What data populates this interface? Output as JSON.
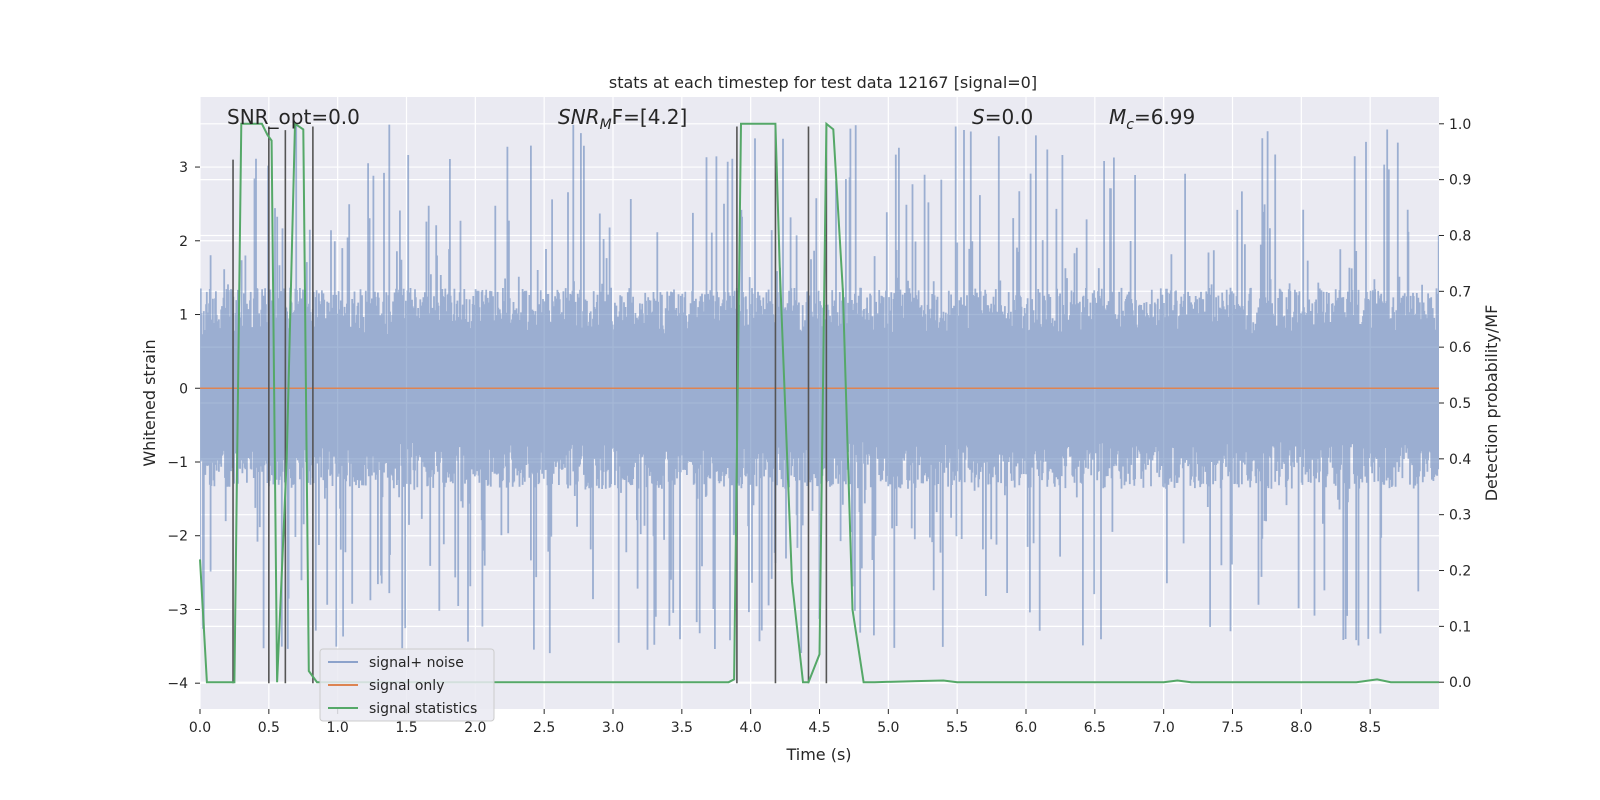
{
  "chart_data": {
    "type": "line",
    "title": "stats at each timestep for test data 12167 [signal=0]",
    "xlabel": "Time (s)",
    "ylabel": "Whitened strain",
    "y2label": "Detection probability/MF",
    "xlim": [
      0.0,
      9.0
    ],
    "ylim": [
      -4.35,
      3.95
    ],
    "y2lim": [
      -0.048,
      1.048
    ],
    "xticks": [
      "0.0",
      "0.5",
      "1.0",
      "1.5",
      "2.0",
      "2.5",
      "3.0",
      "3.5",
      "4.0",
      "4.5",
      "5.0",
      "5.5",
      "6.0",
      "6.5",
      "7.0",
      "7.5",
      "8.0",
      "8.5"
    ],
    "yticks": [
      "3",
      "2",
      "1",
      "0",
      "−1",
      "−2",
      "−3",
      "−4"
    ],
    "y2ticks": [
      "1.0",
      "0.9",
      "0.8",
      "0.7",
      "0.6",
      "0.5",
      "0.4",
      "0.3",
      "0.2",
      "0.1",
      "0.0"
    ],
    "grid": true,
    "legend_position": "lower-left",
    "legend": [
      "signal+ noise",
      "signal only",
      "signal statistics"
    ],
    "annotations": {
      "snr_opt": "SNR_opt=0.0",
      "snr_mf_base": "SNR",
      "snr_mf_sub": "M",
      "snr_mf_rest": "F=[4.2]",
      "s_label": "S",
      "s_value": "=0.0",
      "mc_base": "M",
      "mc_sub": "c",
      "mc_value": "=6.99"
    },
    "noise": {
      "description_axis": "left",
      "typical_amplitude": 1.3,
      "peak_amplitude": 3.6
    },
    "signal_only": {
      "x": [
        0.0,
        9.0
      ],
      "y": [
        0.0,
        0.0
      ]
    },
    "statistics": {
      "x": [
        0.0,
        0.05,
        0.25,
        0.3,
        0.45,
        0.49,
        0.52,
        0.56,
        0.63,
        0.69,
        0.75,
        0.79,
        0.85,
        3.84,
        3.88,
        3.93,
        4.18,
        4.21,
        4.3,
        4.38,
        4.42,
        4.5,
        4.55,
        4.6,
        4.67,
        4.74,
        4.82,
        4.9,
        5.2,
        5.4,
        5.5,
        7.0,
        7.1,
        7.2,
        8.0,
        8.4,
        8.55,
        8.65,
        9.0
      ],
      "y": [
        0.22,
        0.0,
        0.0,
        1.0,
        1.0,
        0.98,
        0.97,
        0.0,
        0.4,
        1.0,
        0.99,
        0.02,
        0.0,
        0.0,
        0.005,
        1.0,
        1.0,
        0.75,
        0.18,
        0.0,
        0.0,
        0.05,
        1.0,
        0.99,
        0.7,
        0.13,
        0.0,
        0.0,
        0.002,
        0.003,
        0.0,
        0.0,
        0.003,
        0.0,
        0.0,
        0.0,
        0.005,
        0.0,
        0.0
      ]
    },
    "mf_markers": {
      "x": [
        0.24,
        0.5,
        0.62,
        0.82,
        3.9,
        4.18,
        4.42,
        4.55
      ],
      "top": [
        3.1,
        3.55,
        3.5,
        3.55,
        3.55,
        3.55,
        3.55,
        3.55
      ]
    },
    "colors": {
      "background": "#eaeaf2",
      "grid": "#ffffff",
      "noise": "#4c72b0",
      "signal_only": "#dd8452",
      "statistics": "#55a868",
      "markers": "#555555"
    }
  }
}
